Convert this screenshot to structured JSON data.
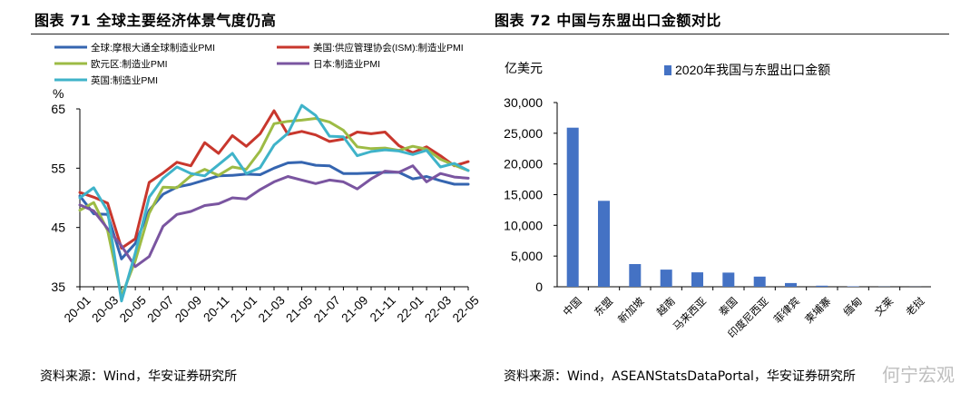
{
  "left": {
    "title": "图表 71  全球主要经济体景气度仍高",
    "source": "资料来源：Wind，华安证券研究所"
  },
  "right": {
    "title": "图表 72  中国与东盟出口金额对比",
    "source": "资料来源：Wind，ASEANStatsDataPortal，华安证券研究所"
  },
  "watermark": "何宁宏观",
  "chart_data": [
    {
      "type": "line",
      "ylabel": "%",
      "ylim": [
        35,
        65
      ],
      "yticks": [
        35,
        45,
        55,
        65
      ],
      "xticks": [
        "20-01",
        "20-03",
        "20-05",
        "20-07",
        "20-09",
        "20-11",
        "21-01",
        "21-03",
        "21-05",
        "21-07",
        "21-09",
        "21-11",
        "22-01",
        "22-03",
        "22-05"
      ],
      "x": [
        "20-01",
        "20-02",
        "20-03",
        "20-04",
        "20-05",
        "20-06",
        "20-07",
        "20-08",
        "20-09",
        "20-10",
        "20-11",
        "20-12",
        "21-01",
        "21-02",
        "21-03",
        "21-04",
        "21-05",
        "21-06",
        "21-07",
        "21-08",
        "21-09",
        "21-10",
        "21-11",
        "21-12",
        "22-01",
        "22-02",
        "22-03",
        "22-04",
        "22-05"
      ],
      "grid": false,
      "legend_position": "top",
      "series": [
        {
          "name": "全球:摩根大通全球制造业PMI",
          "color": "#3565b0",
          "values": [
            50.3,
            47.3,
            47.2,
            39.7,
            42.3,
            47.9,
            50.6,
            51.8,
            52.3,
            53.0,
            53.7,
            53.8,
            54.0,
            53.9,
            55.0,
            55.9,
            56.0,
            55.5,
            55.4,
            54.1,
            54.1,
            54.2,
            54.3,
            54.3,
            53.2,
            53.6,
            52.9,
            52.3,
            52.3
          ]
        },
        {
          "name": "美国:供应管理协会(ISM):制造业PMI",
          "color": "#c8372d",
          "values": [
            50.9,
            50.1,
            49.1,
            41.5,
            43.1,
            52.6,
            54.2,
            56.0,
            55.4,
            59.3,
            57.5,
            60.5,
            58.7,
            60.8,
            64.7,
            60.7,
            61.2,
            60.6,
            59.5,
            59.9,
            61.1,
            60.8,
            61.1,
            58.8,
            57.6,
            58.6,
            57.1,
            55.4,
            56.1
          ]
        },
        {
          "name": "欧元区:制造业PMI",
          "color": "#9dbb45",
          "values": [
            47.9,
            49.2,
            44.5,
            33.4,
            39.4,
            47.4,
            51.8,
            51.7,
            53.7,
            54.8,
            53.8,
            55.2,
            54.8,
            57.9,
            62.5,
            62.9,
            63.1,
            63.4,
            62.8,
            61.4,
            58.6,
            58.3,
            58.4,
            58.0,
            58.7,
            58.2,
            56.5,
            55.5,
            54.6
          ]
        },
        {
          "name": "日本:制造业PMI",
          "color": "#7a55a0",
          "values": [
            48.8,
            47.8,
            44.8,
            41.9,
            38.4,
            40.1,
            45.2,
            47.2,
            47.7,
            48.7,
            49.0,
            50.0,
            49.8,
            51.4,
            52.7,
            53.6,
            53.0,
            52.4,
            53.0,
            52.7,
            51.5,
            53.2,
            54.5,
            54.3,
            55.4,
            52.7,
            54.1,
            53.5,
            53.3
          ]
        },
        {
          "name": "英国:制造业PMI",
          "color": "#3fb3c9",
          "values": [
            50.0,
            51.7,
            47.8,
            32.6,
            40.7,
            50.1,
            53.3,
            55.2,
            54.1,
            53.7,
            55.6,
            57.5,
            54.1,
            55.1,
            58.9,
            60.9,
            65.6,
            63.9,
            60.4,
            60.3,
            57.1,
            57.8,
            58.1,
            57.9,
            57.3,
            58.0,
            55.2,
            55.8,
            54.6
          ]
        }
      ]
    },
    {
      "type": "bar",
      "ylabel": "亿美元",
      "ylim": [
        0,
        30000
      ],
      "yticks": [
        "0",
        "5,000",
        "10,000",
        "15,000",
        "20,000",
        "25,000",
        "30,000"
      ],
      "grid": false,
      "legend_position": "top",
      "categories": [
        "中国",
        "东盟",
        "新加坡",
        "越南",
        "马来西亚",
        "泰国",
        "印度尼西亚",
        "菲律宾",
        "柬埔寨",
        "缅甸",
        "文莱",
        "老挝"
      ],
      "series": [
        {
          "name": "2020年我国与东盟出口金额",
          "color": "#4472c4",
          "values": [
            25900,
            14000,
            3700,
            2800,
            2350,
            2300,
            1650,
            600,
            180,
            80,
            30,
            20
          ]
        }
      ]
    }
  ]
}
